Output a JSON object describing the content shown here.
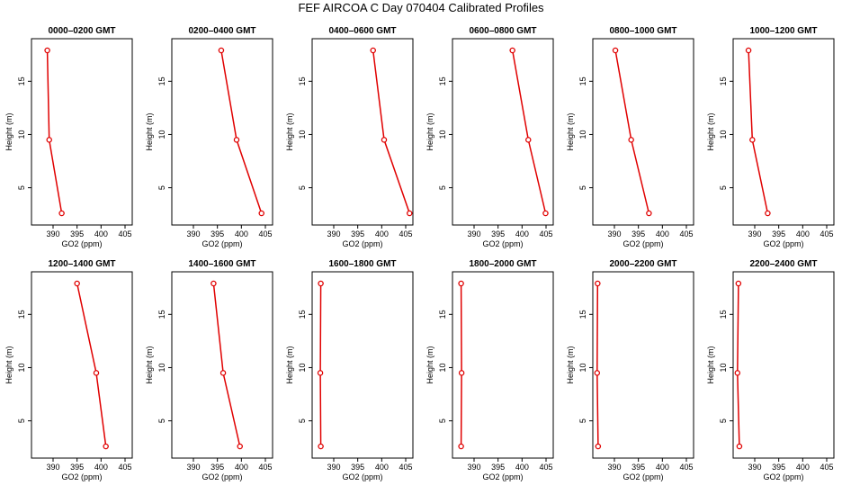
{
  "figure": {
    "title": "FEF AIRCOA C  Day 070404  Calibrated Profiles",
    "series_color": "#e00000"
  },
  "chart_data": [
    {
      "type": "line",
      "title": "0000–0200 GMT",
      "xlabel": "GO2 (ppm)",
      "ylabel": "Height (m)",
      "xlim": [
        385.5,
        406.5
      ],
      "ylim": [
        1.5,
        19
      ],
      "xticks": [
        "390",
        "395",
        "400",
        "405"
      ],
      "yticks": [
        "5",
        "10",
        "15"
      ],
      "x": [
        388.8,
        389.2,
        391.8
      ],
      "y": [
        17.9,
        9.5,
        2.6
      ]
    },
    {
      "type": "line",
      "title": "0200–0400 GMT",
      "xlabel": "GO2 (ppm)",
      "ylabel": "Height (m)",
      "xlim": [
        385.5,
        406.5
      ],
      "ylim": [
        1.5,
        19
      ],
      "xticks": [
        "390",
        "395",
        "400",
        "405"
      ],
      "yticks": [
        "5",
        "10",
        "15"
      ],
      "x": [
        395.8,
        399.0,
        404.2
      ],
      "y": [
        17.9,
        9.5,
        2.6
      ]
    },
    {
      "type": "line",
      "title": "0400–0600 GMT",
      "xlabel": "GO2 (ppm)",
      "ylabel": "Height (m)",
      "xlim": [
        385.5,
        406.5
      ],
      "ylim": [
        1.5,
        19
      ],
      "xticks": [
        "390",
        "395",
        "400",
        "405"
      ],
      "yticks": [
        "5",
        "10",
        "15"
      ],
      "x": [
        398.2,
        400.5,
        405.8
      ],
      "y": [
        17.9,
        9.5,
        2.6
      ]
    },
    {
      "type": "line",
      "title": "0600–0800 GMT",
      "xlabel": "GO2 (ppm)",
      "ylabel": "Height (m)",
      "xlim": [
        385.5,
        406.5
      ],
      "ylim": [
        1.5,
        19
      ],
      "xticks": [
        "390",
        "395",
        "400",
        "405"
      ],
      "yticks": [
        "5",
        "10",
        "15"
      ],
      "x": [
        398.0,
        401.3,
        404.9
      ],
      "y": [
        17.9,
        9.5,
        2.6
      ]
    },
    {
      "type": "line",
      "title": "0800–1000 GMT",
      "xlabel": "GO2 (ppm)",
      "ylabel": "Height (m)",
      "xlim": [
        385.5,
        406.5
      ],
      "ylim": [
        1.5,
        19
      ],
      "xticks": [
        "390",
        "395",
        "400",
        "405"
      ],
      "yticks": [
        "5",
        "10",
        "15"
      ],
      "x": [
        390.2,
        393.5,
        397.2
      ],
      "y": [
        17.9,
        9.5,
        2.6
      ]
    },
    {
      "type": "line",
      "title": "1000–1200 GMT",
      "xlabel": "GO2 (ppm)",
      "ylabel": "Height (m)",
      "xlim": [
        385.5,
        406.5
      ],
      "ylim": [
        1.5,
        19
      ],
      "xticks": [
        "390",
        "395",
        "400",
        "405"
      ],
      "yticks": [
        "5",
        "10",
        "15"
      ],
      "x": [
        388.7,
        389.5,
        392.7
      ],
      "y": [
        17.9,
        9.5,
        2.6
      ]
    },
    {
      "type": "line",
      "title": "1200–1400 GMT",
      "xlabel": "GO2 (ppm)",
      "ylabel": "Height (m)",
      "xlim": [
        385.5,
        406.5
      ],
      "ylim": [
        1.5,
        19
      ],
      "xticks": [
        "390",
        "395",
        "400",
        "405"
      ],
      "yticks": [
        "5",
        "10",
        "15"
      ],
      "x": [
        395.0,
        399.0,
        401.0
      ],
      "y": [
        17.9,
        9.5,
        2.6
      ]
    },
    {
      "type": "line",
      "title": "1400–1600 GMT",
      "xlabel": "GO2 (ppm)",
      "ylabel": "Height (m)",
      "xlim": [
        385.5,
        406.5
      ],
      "ylim": [
        1.5,
        19
      ],
      "xticks": [
        "390",
        "395",
        "400",
        "405"
      ],
      "yticks": [
        "5",
        "10",
        "15"
      ],
      "x": [
        394.2,
        396.2,
        399.7
      ],
      "y": [
        17.9,
        9.5,
        2.6
      ]
    },
    {
      "type": "line",
      "title": "1600–1800 GMT",
      "xlabel": "GO2 (ppm)",
      "ylabel": "Height (m)",
      "xlim": [
        385.5,
        406.5
      ],
      "ylim": [
        1.5,
        19
      ],
      "xticks": [
        "390",
        "395",
        "400",
        "405"
      ],
      "yticks": [
        "5",
        "10",
        "15"
      ],
      "x": [
        387.3,
        387.2,
        387.3
      ],
      "y": [
        17.9,
        9.5,
        2.6
      ]
    },
    {
      "type": "line",
      "title": "1800–2000 GMT",
      "xlabel": "GO2 (ppm)",
      "ylabel": "Height (m)",
      "xlim": [
        385.5,
        406.5
      ],
      "ylim": [
        1.5,
        19
      ],
      "xticks": [
        "390",
        "395",
        "400",
        "405"
      ],
      "yticks": [
        "5",
        "10",
        "15"
      ],
      "x": [
        387.3,
        387.4,
        387.3
      ],
      "y": [
        17.9,
        9.5,
        2.6
      ]
    },
    {
      "type": "line",
      "title": "2000–2200 GMT",
      "xlabel": "GO2 (ppm)",
      "ylabel": "Height (m)",
      "xlim": [
        385.5,
        406.5
      ],
      "ylim": [
        1.5,
        19
      ],
      "xticks": [
        "390",
        "395",
        "400",
        "405"
      ],
      "yticks": [
        "5",
        "10",
        "15"
      ],
      "x": [
        386.5,
        386.4,
        386.6
      ],
      "y": [
        17.9,
        9.5,
        2.6
      ]
    },
    {
      "type": "line",
      "title": "2200–2400 GMT",
      "xlabel": "GO2 (ppm)",
      "ylabel": "Height (m)",
      "xlim": [
        385.5,
        406.5
      ],
      "ylim": [
        1.5,
        19
      ],
      "xticks": [
        "390",
        "395",
        "400",
        "405"
      ],
      "yticks": [
        "5",
        "10",
        "15"
      ],
      "x": [
        386.6,
        386.4,
        386.8
      ],
      "y": [
        17.9,
        9.5,
        2.6
      ]
    }
  ]
}
